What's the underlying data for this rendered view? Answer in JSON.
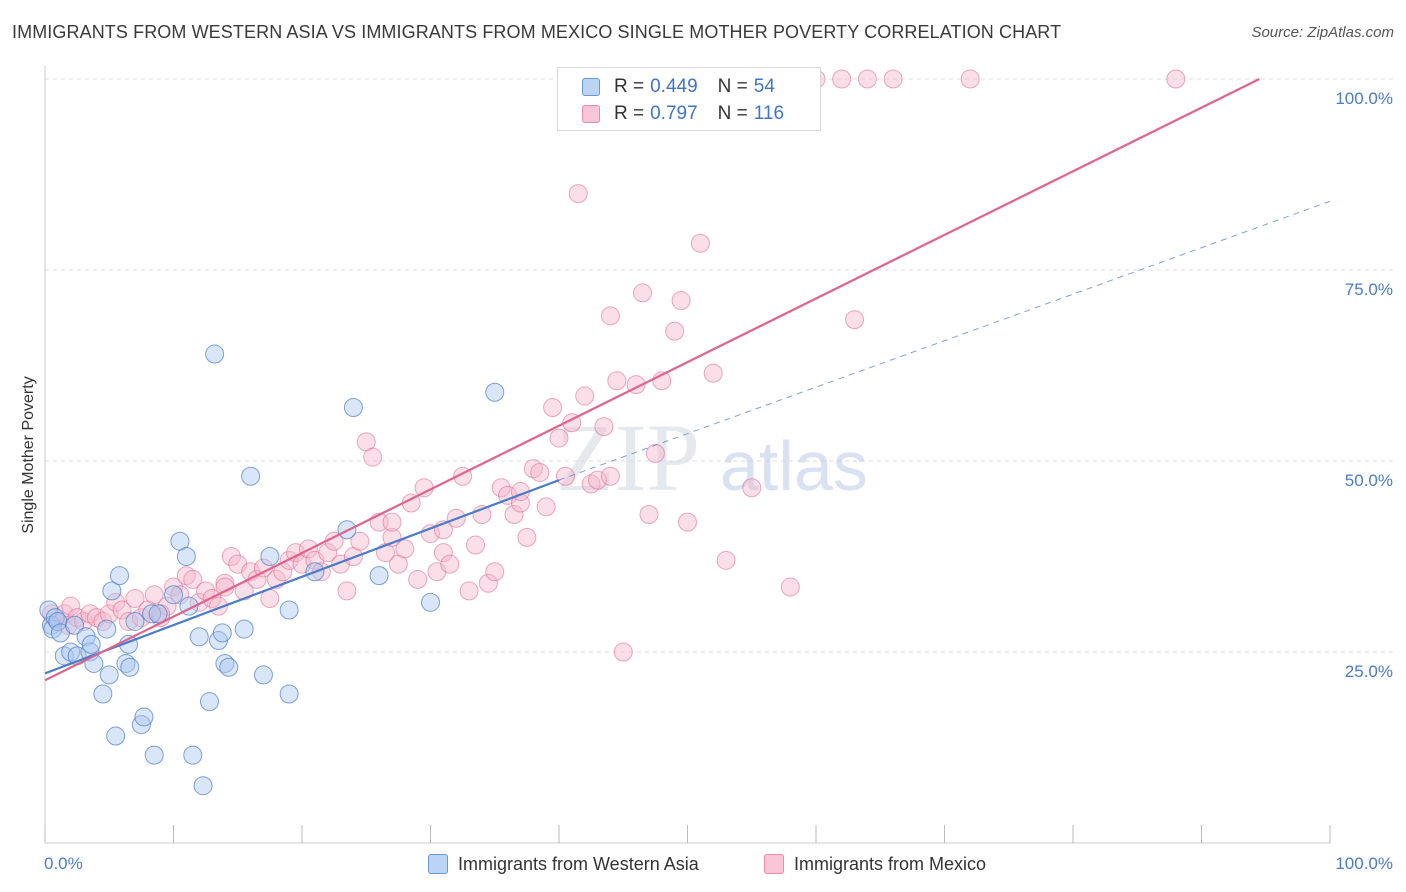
{
  "header": {
    "title": "IMMIGRANTS FROM WESTERN ASIA VS IMMIGRANTS FROM MEXICO SINGLE MOTHER POVERTY CORRELATION CHART",
    "source": "Source: ZipAtlas.com"
  },
  "watermark": {
    "zip": "ZIP",
    "atlas": "atlas"
  },
  "legend_top": {
    "rows": [
      {
        "r_label": "R =",
        "r_value": "0.449",
        "n_label": "N =",
        "n_value": "54"
      },
      {
        "r_label": "R =",
        "r_value": "0.797",
        "n_label": "N =",
        "n_value": "116"
      }
    ]
  },
  "legend_bottom": {
    "series_a": "Immigrants from Western Asia",
    "series_b": "Immigrants from Mexico"
  },
  "chart_data": {
    "type": "scatter",
    "title": "IMMIGRANTS FROM WESTERN ASIA VS IMMIGRANTS FROM MEXICO SINGLE MOTHER POVERTY CORRELATION CHART",
    "xlabel": "",
    "ylabel": "Single Mother Poverty",
    "xlim": [
      0,
      100
    ],
    "ylim": [
      0,
      100
    ],
    "x_tick_labels": [
      "0.0%",
      "100.0%"
    ],
    "y_tick_labels": [
      "25.0%",
      "50.0%",
      "75.0%",
      "100.0%"
    ],
    "y_ticks": [
      25,
      50,
      75,
      100
    ],
    "grid": true,
    "legend_position": "top-center",
    "colors": {
      "series_a": "#4a7cc9",
      "series_a_fill": "#aac8f0",
      "series_b": "#e0648c",
      "series_b_fill": "#f5b8cc"
    },
    "series": [
      {
        "name": "Immigrants from Western Asia",
        "r": 0.449,
        "n": 54,
        "trend": {
          "x": [
            0,
            40
          ],
          "y": [
            22.2,
            47.5
          ],
          "dashed_extension_to": [
            100,
            84
          ]
        },
        "points": [
          [
            0.3,
            30.5
          ],
          [
            0.5,
            28.5
          ],
          [
            0.6,
            28.0
          ],
          [
            0.8,
            29.5
          ],
          [
            1.0,
            29.0
          ],
          [
            1.2,
            27.5
          ],
          [
            1.5,
            24.5
          ],
          [
            2.0,
            25.0
          ],
          [
            2.3,
            28.5
          ],
          [
            2.5,
            24.5
          ],
          [
            3.2,
            27.0
          ],
          [
            3.5,
            25.0
          ],
          [
            3.6,
            26.0
          ],
          [
            3.8,
            23.5
          ],
          [
            4.5,
            19.5
          ],
          [
            4.8,
            28.0
          ],
          [
            5.0,
            22.0
          ],
          [
            5.2,
            33.0
          ],
          [
            5.5,
            14.0
          ],
          [
            5.8,
            35.0
          ],
          [
            6.3,
            23.5
          ],
          [
            6.5,
            26.0
          ],
          [
            6.6,
            23.0
          ],
          [
            7.0,
            29.0
          ],
          [
            7.5,
            15.5
          ],
          [
            7.7,
            16.5
          ],
          [
            8.3,
            30.0
          ],
          [
            8.5,
            11.5
          ],
          [
            8.8,
            30.0
          ],
          [
            10.0,
            32.5
          ],
          [
            10.5,
            39.5
          ],
          [
            11.0,
            37.5
          ],
          [
            11.2,
            31.0
          ],
          [
            11.5,
            11.5
          ],
          [
            12.0,
            27.0
          ],
          [
            12.3,
            7.5
          ],
          [
            12.8,
            18.5
          ],
          [
            13.2,
            64.0
          ],
          [
            13.5,
            26.5
          ],
          [
            13.8,
            27.5
          ],
          [
            14.0,
            23.5
          ],
          [
            14.3,
            23.0
          ],
          [
            15.5,
            28.0
          ],
          [
            16.0,
            48.0
          ],
          [
            17.0,
            22.0
          ],
          [
            17.5,
            37.5
          ],
          [
            19.0,
            19.5
          ],
          [
            19.0,
            30.5
          ],
          [
            21.0,
            35.5
          ],
          [
            23.5,
            41.0
          ],
          [
            24.0,
            57.0
          ],
          [
            26.0,
            35.0
          ],
          [
            30.0,
            31.5
          ],
          [
            35.0,
            59.0
          ]
        ]
      },
      {
        "name": "Immigrants from Mexico",
        "r": 0.797,
        "n": 116,
        "trend": {
          "x": [
            0,
            94.5
          ],
          "y": [
            21.3,
            100
          ]
        },
        "points": [
          [
            0.5,
            30.0
          ],
          [
            1.0,
            29.0
          ],
          [
            1.5,
            30.0
          ],
          [
            1.8,
            28.5
          ],
          [
            2.0,
            31.0
          ],
          [
            2.5,
            29.5
          ],
          [
            3.0,
            29.0
          ],
          [
            3.5,
            30.0
          ],
          [
            4.0,
            29.5
          ],
          [
            4.5,
            29.0
          ],
          [
            5.0,
            30.0
          ],
          [
            5.5,
            31.5
          ],
          [
            6.0,
            30.5
          ],
          [
            6.5,
            29.0
          ],
          [
            7.0,
            32.0
          ],
          [
            7.5,
            29.5
          ],
          [
            8.0,
            30.5
          ],
          [
            8.5,
            32.5
          ],
          [
            9.0,
            29.5
          ],
          [
            9.5,
            31.0
          ],
          [
            10.0,
            33.5
          ],
          [
            10.5,
            32.5
          ],
          [
            11.0,
            35.0
          ],
          [
            11.5,
            34.5
          ],
          [
            12.0,
            31.5
          ],
          [
            12.5,
            33.0
          ],
          [
            13.0,
            32.0
          ],
          [
            13.5,
            31.0
          ],
          [
            14.0,
            34.0
          ],
          [
            14.5,
            37.5
          ],
          [
            15.0,
            36.5
          ],
          [
            15.5,
            33.0
          ],
          [
            16.0,
            35.5
          ],
          [
            16.5,
            34.5
          ],
          [
            17.0,
            36.0
          ],
          [
            17.5,
            32.0
          ],
          [
            18.0,
            34.5
          ],
          [
            18.5,
            35.5
          ],
          [
            19.0,
            37.0
          ],
          [
            19.5,
            38.0
          ],
          [
            20.0,
            36.5
          ],
          [
            20.5,
            38.5
          ],
          [
            21.0,
            37.0
          ],
          [
            21.5,
            35.5
          ],
          [
            22.0,
            38.0
          ],
          [
            22.5,
            39.5
          ],
          [
            23.0,
            36.5
          ],
          [
            23.5,
            33.0
          ],
          [
            24.0,
            37.5
          ],
          [
            24.5,
            39.5
          ],
          [
            25.0,
            52.5
          ],
          [
            25.5,
            50.5
          ],
          [
            26.0,
            42.0
          ],
          [
            26.5,
            38.0
          ],
          [
            27.0,
            40.0
          ],
          [
            27.5,
            36.5
          ],
          [
            28.0,
            38.5
          ],
          [
            28.5,
            44.5
          ],
          [
            29.0,
            34.5
          ],
          [
            29.5,
            46.5
          ],
          [
            30.0,
            40.5
          ],
          [
            30.5,
            35.5
          ],
          [
            31.0,
            38.0
          ],
          [
            31.5,
            36.5
          ],
          [
            32.0,
            42.5
          ],
          [
            32.5,
            48.0
          ],
          [
            33.0,
            33.0
          ],
          [
            33.5,
            39.0
          ],
          [
            34.0,
            43.0
          ],
          [
            34.5,
            34.0
          ],
          [
            35.0,
            35.5
          ],
          [
            35.5,
            46.5
          ],
          [
            36.0,
            45.5
          ],
          [
            36.5,
            43.0
          ],
          [
            37.0,
            44.5
          ],
          [
            37.5,
            40.0
          ],
          [
            38.0,
            49.0
          ],
          [
            38.5,
            48.5
          ],
          [
            39.0,
            44.0
          ],
          [
            39.5,
            57.0
          ],
          [
            40.0,
            53.0
          ],
          [
            40.5,
            48.0
          ],
          [
            41.0,
            55.0
          ],
          [
            41.5,
            85.0
          ],
          [
            42.0,
            58.5
          ],
          [
            42.5,
            47.0
          ],
          [
            43.0,
            47.5
          ],
          [
            43.5,
            54.5
          ],
          [
            44.0,
            69.0
          ],
          [
            44.5,
            60.5
          ],
          [
            45.0,
            25.0
          ],
          [
            46.0,
            60.0
          ],
          [
            46.5,
            72.0
          ],
          [
            47.0,
            43.0
          ],
          [
            47.5,
            51.0
          ],
          [
            48.0,
            60.5
          ],
          [
            49.0,
            67.0
          ],
          [
            49.5,
            71.0
          ],
          [
            50.0,
            42.0
          ],
          [
            51.0,
            78.5
          ],
          [
            52.0,
            61.5
          ],
          [
            53.0,
            37.0
          ],
          [
            55.0,
            46.5
          ],
          [
            56.0,
            100.0
          ],
          [
            58.0,
            33.5
          ],
          [
            60.0,
            100.0
          ],
          [
            62.0,
            100.0
          ],
          [
            63.0,
            68.5
          ],
          [
            64.0,
            100.0
          ],
          [
            66.0,
            100.0
          ],
          [
            72.0,
            100.0
          ],
          [
            88.0,
            100.0
          ],
          [
            27.0,
            42.0
          ],
          [
            14.0,
            33.5
          ],
          [
            9.0,
            30.0
          ],
          [
            44.0,
            48.0
          ],
          [
            37.0,
            46.0
          ],
          [
            31.0,
            41.0
          ]
        ]
      }
    ]
  }
}
